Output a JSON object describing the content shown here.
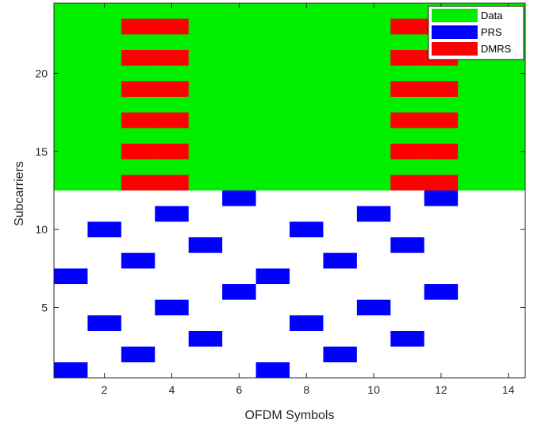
{
  "chart_data": {
    "type": "heatmap",
    "xlabel": "OFDM Symbols",
    "ylabel": "Subcarriers",
    "xlim": [
      0.5,
      14.5
    ],
    "ylim": [
      0.5,
      24.5
    ],
    "x_ticks": [
      2,
      4,
      6,
      8,
      10,
      12,
      14
    ],
    "y_ticks": [
      5,
      10,
      15,
      20
    ],
    "legend": {
      "placement": "top-right",
      "entries": [
        {
          "label": "Data",
          "color": "#00ee00"
        },
        {
          "label": "PRS",
          "color": "#0000ff"
        },
        {
          "label": "DMRS",
          "color": "#ff0000"
        }
      ]
    },
    "data_region": {
      "symbols": [
        1,
        14
      ],
      "subcarriers": [
        13,
        24
      ],
      "color": "#00ee00"
    },
    "dmrs": {
      "color": "#ff0000",
      "cells": [
        {
          "symbols": [
            3,
            4
          ],
          "subcarriers": [
            13,
            15,
            17,
            19,
            21,
            23
          ]
        },
        {
          "symbols": [
            11,
            12
          ],
          "subcarriers": [
            13,
            15,
            17,
            19,
            21,
            23
          ]
        }
      ]
    },
    "prs": {
      "color": "#0000ff",
      "cells": [
        [
          1,
          1
        ],
        [
          1,
          7
        ],
        [
          7,
          1
        ],
        [
          7,
          7
        ],
        [
          2,
          4
        ],
        [
          2,
          10
        ],
        [
          8,
          4
        ],
        [
          8,
          10
        ],
        [
          3,
          2
        ],
        [
          3,
          8
        ],
        [
          9,
          2
        ],
        [
          9,
          8
        ],
        [
          4,
          5
        ],
        [
          4,
          11
        ],
        [
          10,
          5
        ],
        [
          10,
          11
        ],
        [
          5,
          3
        ],
        [
          5,
          9
        ],
        [
          11,
          3
        ],
        [
          11,
          9
        ],
        [
          6,
          6
        ],
        [
          6,
          12
        ],
        [
          12,
          6
        ],
        [
          12,
          12
        ]
      ]
    }
  }
}
